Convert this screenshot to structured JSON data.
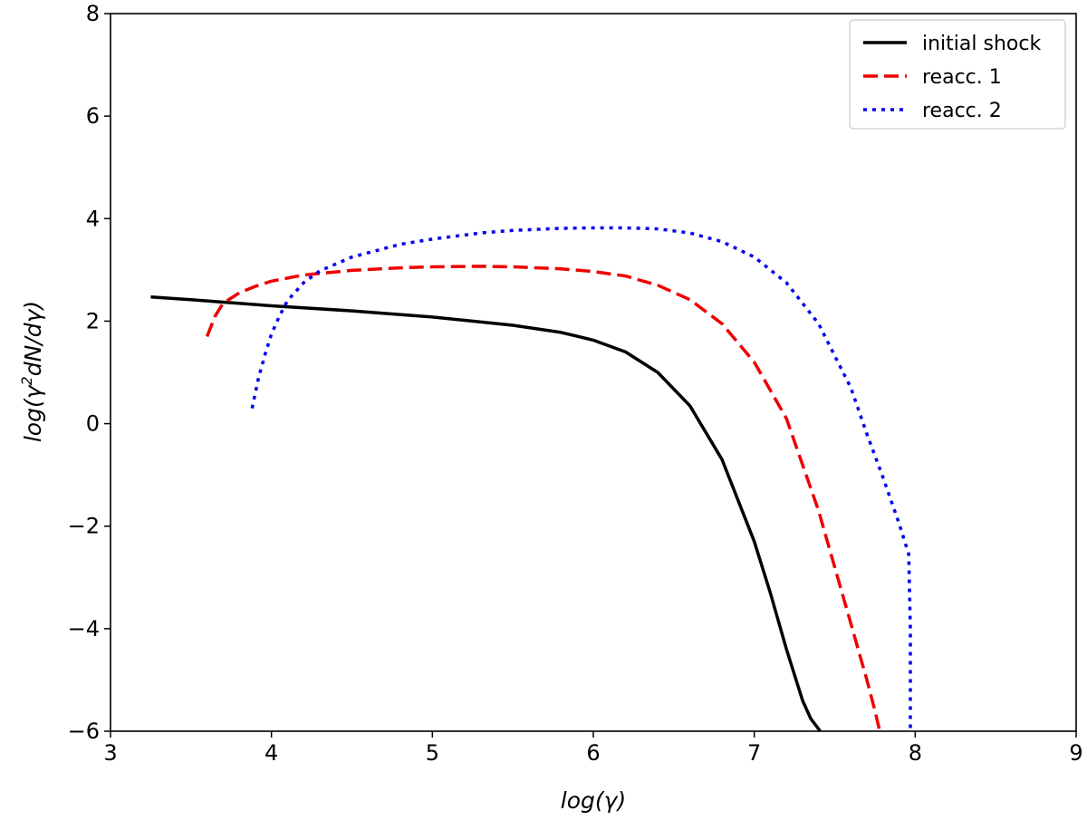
{
  "chart_data": {
    "type": "line",
    "title": "",
    "xlabel": "log(γ)",
    "ylabel_parts": {
      "pre": "log(γ",
      "sup": "2",
      "post": "dN/dγ)"
    },
    "xlim": [
      3,
      9
    ],
    "ylim": [
      -6,
      8
    ],
    "x_ticks": [
      3,
      4,
      5,
      6,
      7,
      8,
      9
    ],
    "y_ticks": [
      -6,
      -4,
      -2,
      0,
      2,
      4,
      6,
      8
    ],
    "x_tick_labels": [
      "3",
      "4",
      "5",
      "6",
      "7",
      "8",
      "9"
    ],
    "y_tick_labels": [
      "−6",
      "−4",
      "−2",
      "0",
      "2",
      "4",
      "6",
      "8"
    ],
    "grid": false,
    "legend_position": "top-right",
    "series": [
      {
        "name": "initial shock",
        "color": "#000000",
        "style": "solid",
        "x": [
          3.25,
          3.5,
          4.0,
          4.5,
          5.0,
          5.5,
          5.8,
          6.0,
          6.2,
          6.4,
          6.6,
          6.8,
          7.0,
          7.1,
          7.2,
          7.3,
          7.35,
          7.41
        ],
        "y": [
          2.47,
          2.42,
          2.3,
          2.2,
          2.08,
          1.92,
          1.78,
          1.63,
          1.4,
          1.0,
          0.35,
          -0.7,
          -2.3,
          -3.3,
          -4.4,
          -5.4,
          -5.75,
          -6.0
        ]
      },
      {
        "name": "reacc. 1",
        "color": "#ee0000",
        "style": "dashed",
        "x": [
          3.6,
          3.65,
          3.7,
          3.8,
          3.9,
          4.0,
          4.2,
          4.5,
          4.8,
          5.0,
          5.3,
          5.5,
          5.8,
          6.0,
          6.2,
          6.4,
          6.6,
          6.8,
          7.0,
          7.2,
          7.4,
          7.5,
          7.6,
          7.7,
          7.75,
          7.78
        ],
        "y": [
          1.7,
          2.1,
          2.35,
          2.55,
          2.68,
          2.78,
          2.9,
          2.99,
          3.04,
          3.06,
          3.07,
          3.06,
          3.02,
          2.97,
          2.88,
          2.7,
          2.42,
          1.95,
          1.2,
          0.1,
          -1.7,
          -2.8,
          -3.9,
          -5.0,
          -5.6,
          -6.0
        ]
      },
      {
        "name": "reacc. 2",
        "color": "#0000ee",
        "style": "dotted",
        "x": [
          3.88,
          3.92,
          3.96,
          4.0,
          4.05,
          4.1,
          4.2,
          4.3,
          4.5,
          4.8,
          5.0,
          5.3,
          5.5,
          5.8,
          6.0,
          6.2,
          6.4,
          6.6,
          6.8,
          7.0,
          7.2,
          7.4,
          7.6,
          7.7,
          7.8,
          7.9,
          7.96,
          7.97,
          7.97
        ],
        "y": [
          0.3,
          0.9,
          1.35,
          1.75,
          2.1,
          2.4,
          2.75,
          2.98,
          3.25,
          3.5,
          3.6,
          3.72,
          3.77,
          3.81,
          3.82,
          3.82,
          3.8,
          3.72,
          3.55,
          3.25,
          2.75,
          1.95,
          0.7,
          -0.2,
          -1.05,
          -1.95,
          -2.55,
          -4.0,
          -6.0
        ]
      }
    ]
  }
}
